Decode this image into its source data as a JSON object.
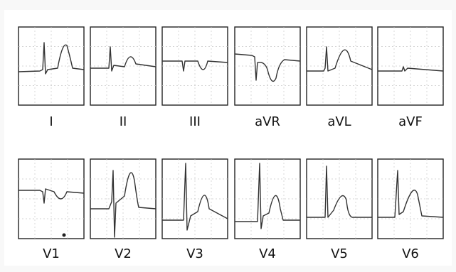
{
  "leads": [
    {
      "label": "I"
    },
    {
      "label": "II"
    },
    {
      "label": "III"
    },
    {
      "label": "aVR"
    },
    {
      "label": "aVL"
    },
    {
      "label": "aVF"
    },
    {
      "label": "V1"
    },
    {
      "label": "V2"
    },
    {
      "label": "V3"
    },
    {
      "label": "V4"
    },
    {
      "label": "V5"
    },
    {
      "label": "V6"
    }
  ]
}
